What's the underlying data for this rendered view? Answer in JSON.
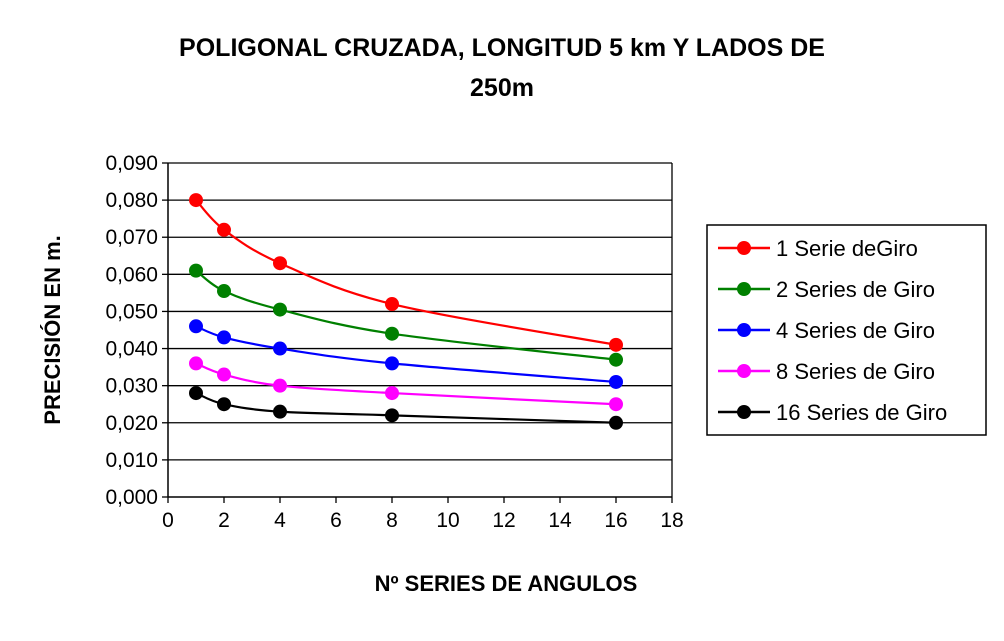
{
  "chart_data": {
    "type": "line",
    "title_line1": "POLIGONAL CRUZADA, LONGITUD 5 km Y LADOS  DE",
    "title_line2": "250m",
    "xlabel": "Nº SERIES DE ANGULOS",
    "ylabel": "PRECISIÓN EN m.",
    "xlim": [
      0,
      18
    ],
    "ylim": [
      0,
      0.09
    ],
    "x_ticks": [
      "0",
      "2",
      "4",
      "6",
      "8",
      "10",
      "12",
      "14",
      "16",
      "18"
    ],
    "y_ticks": [
      "0,000",
      "0,010",
      "0,020",
      "0,030",
      "0,040",
      "0,050",
      "0,060",
      "0,070",
      "0,080",
      "0,090"
    ],
    "grid": "horizontal",
    "legend_position": "right",
    "x": [
      1,
      2,
      4,
      8,
      16
    ],
    "series": [
      {
        "name": "1 Serie deGiro",
        "color": "#ff0000",
        "values": [
          0.08,
          0.072,
          0.063,
          0.052,
          0.041
        ]
      },
      {
        "name": "2 Series de Giro",
        "color": "#008000",
        "values": [
          0.061,
          0.0555,
          0.0505,
          0.044,
          0.037
        ]
      },
      {
        "name": "4 Series de Giro",
        "color": "#0000ff",
        "values": [
          0.046,
          0.043,
          0.04,
          0.036,
          0.031
        ]
      },
      {
        "name": "8 Series de Giro",
        "color": "#ff00ff",
        "values": [
          0.036,
          0.033,
          0.03,
          0.028,
          0.025
        ]
      },
      {
        "name": "16 Series de Giro",
        "color": "#000000",
        "values": [
          0.028,
          0.025,
          0.023,
          0.022,
          0.02
        ]
      }
    ]
  }
}
